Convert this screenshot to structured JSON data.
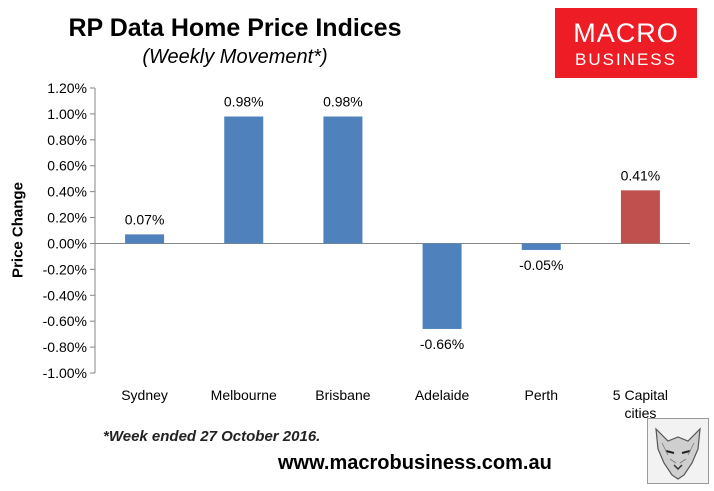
{
  "title": "RP Data Home Price Indices",
  "subtitle": "(Weekly Movement*)",
  "logo": {
    "line1": "MACRO",
    "line2": "BUSINESS",
    "bg_color": "#ee1c24"
  },
  "footnote": "*Week ended 27 October 2016.",
  "url": "www.macrobusiness.com.au",
  "badge_icon": "wolf-head-icon",
  "chart_data": {
    "type": "bar",
    "title": "RP Data Home Price Indices",
    "subtitle": "(Weekly Movement*)",
    "xlabel": "",
    "ylabel": "Price Change",
    "ylim": [
      -1.0,
      1.2
    ],
    "yticks": [
      "1.20%",
      "1.00%",
      "0.80%",
      "0.60%",
      "0.40%",
      "0.20%",
      "0.00%",
      "-0.20%",
      "-0.40%",
      "-0.60%",
      "-0.80%",
      "-1.00%"
    ],
    "categories": [
      [
        "Sydney"
      ],
      [
        "Melbourne"
      ],
      [
        "Brisbane"
      ],
      [
        "Adelaide"
      ],
      [
        "Perth"
      ],
      [
        "5 Capital",
        "cities"
      ]
    ],
    "values": [
      0.07,
      0.98,
      0.98,
      -0.66,
      -0.05,
      0.41
    ],
    "data_labels": [
      "0.07%",
      "0.98%",
      "0.98%",
      "-0.66%",
      "-0.05%",
      "0.41%"
    ],
    "colors": [
      "#4f81bd",
      "#4f81bd",
      "#4f81bd",
      "#4f81bd",
      "#4f81bd",
      "#c0504d"
    ],
    "grid": false,
    "legend": "none"
  }
}
